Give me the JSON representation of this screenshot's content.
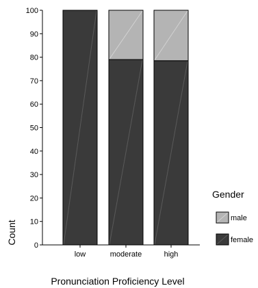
{
  "chart_data": {
    "type": "bar",
    "stacked": true,
    "categories": [
      "low",
      "moderate",
      "high"
    ],
    "series": [
      {
        "name": "female",
        "values": [
          100,
          79,
          78.5
        ],
        "color": "#3a3a3a"
      },
      {
        "name": "male",
        "values": [
          0,
          21,
          21.5
        ],
        "color": "#b4b4b4"
      }
    ],
    "xlabel": "Pronunciation Proficiency Level",
    "ylabel": "Count",
    "ylim": [
      0,
      100
    ],
    "yticks": [
      0,
      10,
      20,
      30,
      40,
      50,
      60,
      70,
      80,
      90,
      100
    ],
    "grid": false,
    "legend": {
      "title": "Gender",
      "placement": "right",
      "order": [
        "male",
        "female"
      ]
    }
  }
}
